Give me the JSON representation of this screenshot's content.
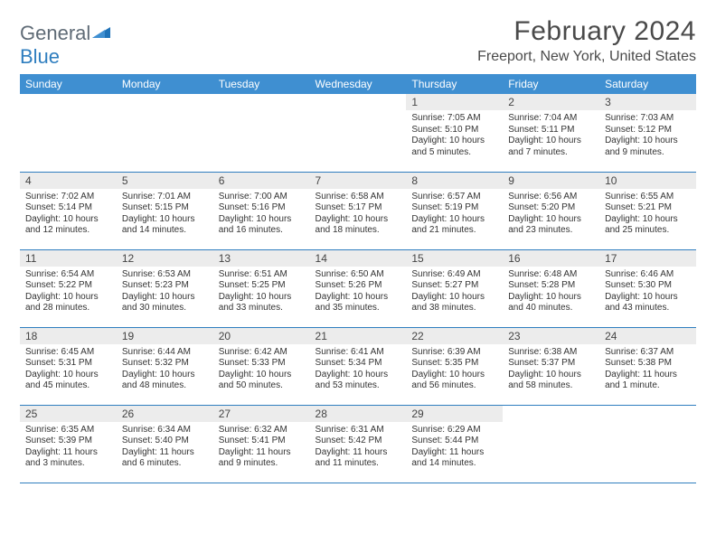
{
  "logo": {
    "part1": "General",
    "part2": "Blue"
  },
  "title": "February 2024",
  "location": "Freeport, New York, United States",
  "colors": {
    "header_bg": "#3f8fd1",
    "border": "#2f7ebf",
    "daynum_bg": "#ececec",
    "logo_gray": "#5f6b76",
    "logo_blue": "#2f7ebf"
  },
  "weekdays": [
    "Sunday",
    "Monday",
    "Tuesday",
    "Wednesday",
    "Thursday",
    "Friday",
    "Saturday"
  ],
  "weeks": [
    [
      null,
      null,
      null,
      null,
      {
        "n": "1",
        "sr": "Sunrise: 7:05 AM",
        "ss": "Sunset: 5:10 PM",
        "d1": "Daylight: 10 hours",
        "d2": "and 5 minutes."
      },
      {
        "n": "2",
        "sr": "Sunrise: 7:04 AM",
        "ss": "Sunset: 5:11 PM",
        "d1": "Daylight: 10 hours",
        "d2": "and 7 minutes."
      },
      {
        "n": "3",
        "sr": "Sunrise: 7:03 AM",
        "ss": "Sunset: 5:12 PM",
        "d1": "Daylight: 10 hours",
        "d2": "and 9 minutes."
      }
    ],
    [
      {
        "n": "4",
        "sr": "Sunrise: 7:02 AM",
        "ss": "Sunset: 5:14 PM",
        "d1": "Daylight: 10 hours",
        "d2": "and 12 minutes."
      },
      {
        "n": "5",
        "sr": "Sunrise: 7:01 AM",
        "ss": "Sunset: 5:15 PM",
        "d1": "Daylight: 10 hours",
        "d2": "and 14 minutes."
      },
      {
        "n": "6",
        "sr": "Sunrise: 7:00 AM",
        "ss": "Sunset: 5:16 PM",
        "d1": "Daylight: 10 hours",
        "d2": "and 16 minutes."
      },
      {
        "n": "7",
        "sr": "Sunrise: 6:58 AM",
        "ss": "Sunset: 5:17 PM",
        "d1": "Daylight: 10 hours",
        "d2": "and 18 minutes."
      },
      {
        "n": "8",
        "sr": "Sunrise: 6:57 AM",
        "ss": "Sunset: 5:19 PM",
        "d1": "Daylight: 10 hours",
        "d2": "and 21 minutes."
      },
      {
        "n": "9",
        "sr": "Sunrise: 6:56 AM",
        "ss": "Sunset: 5:20 PM",
        "d1": "Daylight: 10 hours",
        "d2": "and 23 minutes."
      },
      {
        "n": "10",
        "sr": "Sunrise: 6:55 AM",
        "ss": "Sunset: 5:21 PM",
        "d1": "Daylight: 10 hours",
        "d2": "and 25 minutes."
      }
    ],
    [
      {
        "n": "11",
        "sr": "Sunrise: 6:54 AM",
        "ss": "Sunset: 5:22 PM",
        "d1": "Daylight: 10 hours",
        "d2": "and 28 minutes."
      },
      {
        "n": "12",
        "sr": "Sunrise: 6:53 AM",
        "ss": "Sunset: 5:23 PM",
        "d1": "Daylight: 10 hours",
        "d2": "and 30 minutes."
      },
      {
        "n": "13",
        "sr": "Sunrise: 6:51 AM",
        "ss": "Sunset: 5:25 PM",
        "d1": "Daylight: 10 hours",
        "d2": "and 33 minutes."
      },
      {
        "n": "14",
        "sr": "Sunrise: 6:50 AM",
        "ss": "Sunset: 5:26 PM",
        "d1": "Daylight: 10 hours",
        "d2": "and 35 minutes."
      },
      {
        "n": "15",
        "sr": "Sunrise: 6:49 AM",
        "ss": "Sunset: 5:27 PM",
        "d1": "Daylight: 10 hours",
        "d2": "and 38 minutes."
      },
      {
        "n": "16",
        "sr": "Sunrise: 6:48 AM",
        "ss": "Sunset: 5:28 PM",
        "d1": "Daylight: 10 hours",
        "d2": "and 40 minutes."
      },
      {
        "n": "17",
        "sr": "Sunrise: 6:46 AM",
        "ss": "Sunset: 5:30 PM",
        "d1": "Daylight: 10 hours",
        "d2": "and 43 minutes."
      }
    ],
    [
      {
        "n": "18",
        "sr": "Sunrise: 6:45 AM",
        "ss": "Sunset: 5:31 PM",
        "d1": "Daylight: 10 hours",
        "d2": "and 45 minutes."
      },
      {
        "n": "19",
        "sr": "Sunrise: 6:44 AM",
        "ss": "Sunset: 5:32 PM",
        "d1": "Daylight: 10 hours",
        "d2": "and 48 minutes."
      },
      {
        "n": "20",
        "sr": "Sunrise: 6:42 AM",
        "ss": "Sunset: 5:33 PM",
        "d1": "Daylight: 10 hours",
        "d2": "and 50 minutes."
      },
      {
        "n": "21",
        "sr": "Sunrise: 6:41 AM",
        "ss": "Sunset: 5:34 PM",
        "d1": "Daylight: 10 hours",
        "d2": "and 53 minutes."
      },
      {
        "n": "22",
        "sr": "Sunrise: 6:39 AM",
        "ss": "Sunset: 5:35 PM",
        "d1": "Daylight: 10 hours",
        "d2": "and 56 minutes."
      },
      {
        "n": "23",
        "sr": "Sunrise: 6:38 AM",
        "ss": "Sunset: 5:37 PM",
        "d1": "Daylight: 10 hours",
        "d2": "and 58 minutes."
      },
      {
        "n": "24",
        "sr": "Sunrise: 6:37 AM",
        "ss": "Sunset: 5:38 PM",
        "d1": "Daylight: 11 hours",
        "d2": "and 1 minute."
      }
    ],
    [
      {
        "n": "25",
        "sr": "Sunrise: 6:35 AM",
        "ss": "Sunset: 5:39 PM",
        "d1": "Daylight: 11 hours",
        "d2": "and 3 minutes."
      },
      {
        "n": "26",
        "sr": "Sunrise: 6:34 AM",
        "ss": "Sunset: 5:40 PM",
        "d1": "Daylight: 11 hours",
        "d2": "and 6 minutes."
      },
      {
        "n": "27",
        "sr": "Sunrise: 6:32 AM",
        "ss": "Sunset: 5:41 PM",
        "d1": "Daylight: 11 hours",
        "d2": "and 9 minutes."
      },
      {
        "n": "28",
        "sr": "Sunrise: 6:31 AM",
        "ss": "Sunset: 5:42 PM",
        "d1": "Daylight: 11 hours",
        "d2": "and 11 minutes."
      },
      {
        "n": "29",
        "sr": "Sunrise: 6:29 AM",
        "ss": "Sunset: 5:44 PM",
        "d1": "Daylight: 11 hours",
        "d2": "and 14 minutes."
      },
      null,
      null
    ]
  ]
}
